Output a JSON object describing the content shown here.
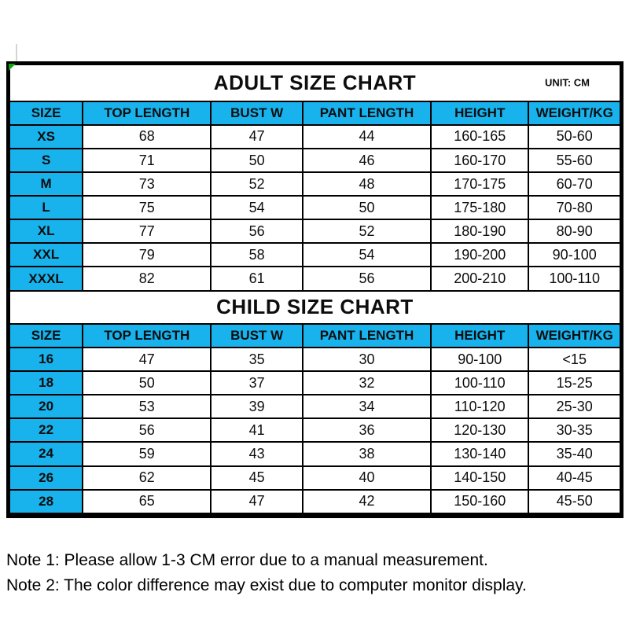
{
  "colors": {
    "header_fill": "#18b2ec",
    "border": "#000000",
    "corner_marker_green": "#12a312",
    "text": "#0d0d0d"
  },
  "adult_chart": {
    "title": "ADULT SIZE CHART",
    "unit_label": "UNIT: CM",
    "columns": [
      "SIZE",
      "TOP LENGTH",
      "BUST W",
      "PANT LENGTH",
      "HEIGHT",
      "WEIGHT/KG"
    ],
    "rows": [
      [
        "XS",
        "68",
        "47",
        "44",
        "160-165",
        "50-60"
      ],
      [
        "S",
        "71",
        "50",
        "46",
        "160-170",
        "55-60"
      ],
      [
        "M",
        "73",
        "52",
        "48",
        "170-175",
        "60-70"
      ],
      [
        "L",
        "75",
        "54",
        "50",
        "175-180",
        "70-80"
      ],
      [
        "XL",
        "77",
        "56",
        "52",
        "180-190",
        "80-90"
      ],
      [
        "XXL",
        "79",
        "58",
        "54",
        "190-200",
        "90-100"
      ],
      [
        "XXXL",
        "82",
        "61",
        "56",
        "200-210",
        "100-110"
      ]
    ]
  },
  "child_chart": {
    "title": "CHILD SIZE CHART",
    "columns": [
      "SIZE",
      "TOP LENGTH",
      "BUST W",
      "PANT LENGTH",
      "HEIGHT",
      "WEIGHT/KG"
    ],
    "rows": [
      [
        "16",
        "47",
        "35",
        "30",
        "90-100",
        "<15"
      ],
      [
        "18",
        "50",
        "37",
        "32",
        "100-110",
        "15-25"
      ],
      [
        "20",
        "53",
        "39",
        "34",
        "110-120",
        "25-30"
      ],
      [
        "22",
        "56",
        "41",
        "36",
        "120-130",
        "30-35"
      ],
      [
        "24",
        "59",
        "43",
        "38",
        "130-140",
        "35-40"
      ],
      [
        "26",
        "62",
        "45",
        "40",
        "140-150",
        "40-45"
      ],
      [
        "28",
        "65",
        "47",
        "42",
        "150-160",
        "45-50"
      ]
    ]
  },
  "notes": {
    "note1": "Note 1: Please allow 1-3 CM error due to a manual measurement.",
    "note2": "Note 2: The color difference may exist due to computer monitor display."
  }
}
